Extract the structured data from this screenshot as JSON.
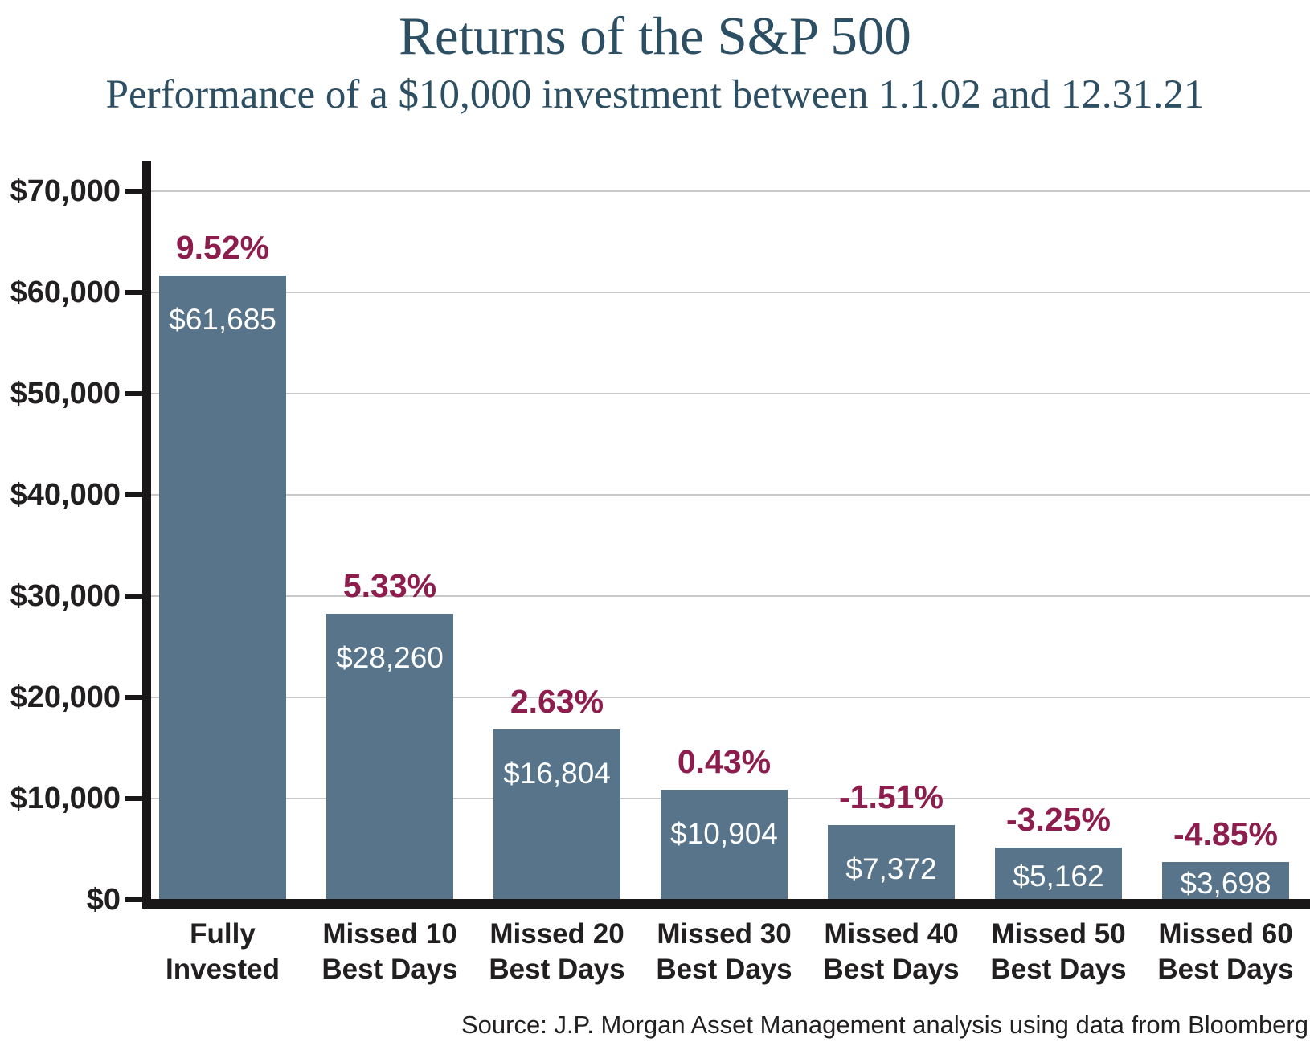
{
  "colors": {
    "title_text": "#2d4f63",
    "bar_fill": "#57748a",
    "percent_label": "#8c1d4d",
    "axis_black": "#1a1718",
    "gridline": "#c9c9c9",
    "bar_value_text": "#ffffff",
    "category_text": "#221f20",
    "source_text": "#221f20"
  },
  "chart_data": {
    "type": "bar",
    "title": "Returns of the S&P 500",
    "subtitle": "Performance of a $10,000 investment between 1.1.02 and 12.31.21",
    "source": "Source: J.P. Morgan Asset Management analysis using data from Bloomberg",
    "categories": [
      "Fully Invested",
      "Missed 10 Best Days",
      "Missed 20 Best Days",
      "Missed 30 Best Days",
      "Missed 40 Best Days",
      "Missed 50 Best Days",
      "Missed 60 Best Days"
    ],
    "category_lines": [
      [
        "Fully",
        "Invested"
      ],
      [
        "Missed 10",
        "Best Days"
      ],
      [
        "Missed 20",
        "Best Days"
      ],
      [
        "Missed 30",
        "Best Days"
      ],
      [
        "Missed 40",
        "Best Days"
      ],
      [
        "Missed 50",
        "Best Days"
      ],
      [
        "Missed 60",
        "Best Days"
      ]
    ],
    "values": [
      61685,
      28260,
      16804,
      10904,
      7372,
      5162,
      3698
    ],
    "bar_value_labels": [
      "$61,685",
      "$28,260",
      "$16,804",
      "$10,904",
      "$7,372",
      "$5,162",
      "$3,698"
    ],
    "annualized_return_labels": [
      "9.52%",
      "5.33%",
      "2.63%",
      "0.43%",
      "-1.51%",
      "-3.25%",
      "-4.85%"
    ],
    "y_axis": {
      "min": 0,
      "max": 70000,
      "tick_step": 10000,
      "tick_labels": [
        "$0",
        "$10,000",
        "$20,000",
        "$30,000",
        "$40,000",
        "$50,000",
        "$60,000",
        "$70,000"
      ]
    },
    "grid": true,
    "legend": null
  }
}
